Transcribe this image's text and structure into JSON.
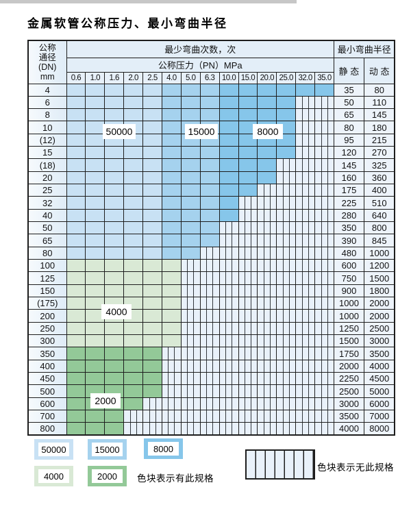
{
  "page": {
    "title": "金属软管公称压力、最小弯曲半径"
  },
  "table": {
    "corner": {
      "line1": "公称",
      "line2": "通径",
      "line3": "(DN)",
      "line4": "mm"
    },
    "header_cycles": "最少弯曲次数，次",
    "header_radius": "最小弯曲半径",
    "header_pressure": "公称压力（PN）MPa",
    "static_label": "静 态",
    "dynamic_label": "动 态",
    "pressure_cols": [
      "0.6",
      "1.0",
      "1.6",
      "2.0",
      "2.5",
      "4.0",
      "5.0",
      "6.3",
      "10.0",
      "15.0",
      "20.0",
      "25.0",
      "32.0",
      "35.0"
    ],
    "shade_by_pressure_index": {
      "blue_50000": [
        0,
        4
      ],
      "blue_15000": [
        5,
        7
      ],
      "blue_8000": [
        8,
        13
      ]
    },
    "rows": [
      {
        "dn": "4",
        "static": "35",
        "dynamic": "80",
        "palette": "blue",
        "solid": 14
      },
      {
        "dn": "6",
        "static": "50",
        "dynamic": "110",
        "palette": "blue",
        "solid": 12
      },
      {
        "dn": "8",
        "static": "65",
        "dynamic": "145",
        "palette": "blue",
        "solid": 12
      },
      {
        "dn": "10",
        "static": "80",
        "dynamic": "180",
        "palette": "blue",
        "solid": 12
      },
      {
        "dn": "(12)",
        "static": "95",
        "dynamic": "215",
        "palette": "blue",
        "solid": 12
      },
      {
        "dn": "15",
        "static": "120",
        "dynamic": "270",
        "palette": "blue",
        "solid": 12
      },
      {
        "dn": "(18)",
        "static": "145",
        "dynamic": "325",
        "palette": "blue",
        "solid": 11
      },
      {
        "dn": "20",
        "static": "160",
        "dynamic": "360",
        "palette": "blue",
        "solid": 11
      },
      {
        "dn": "25",
        "static": "175",
        "dynamic": "400",
        "palette": "blue",
        "solid": 10
      },
      {
        "dn": "32",
        "static": "225",
        "dynamic": "510",
        "palette": "blue",
        "solid": 9
      },
      {
        "dn": "40",
        "static": "280",
        "dynamic": "640",
        "palette": "blue",
        "solid": 9
      },
      {
        "dn": "50",
        "static": "350",
        "dynamic": "800",
        "palette": "blue",
        "solid": 8
      },
      {
        "dn": "65",
        "static": "390",
        "dynamic": "845",
        "palette": "blue",
        "solid": 8
      },
      {
        "dn": "80",
        "static": "480",
        "dynamic": "1000",
        "palette": "blue",
        "solid": 7
      },
      {
        "dn": "100",
        "static": "600",
        "dynamic": "1200",
        "palette": "green4000",
        "solid": 6
      },
      {
        "dn": "125",
        "static": "750",
        "dynamic": "1500",
        "palette": "green4000",
        "solid": 6
      },
      {
        "dn": "150",
        "static": "900",
        "dynamic": "1800",
        "palette": "green4000",
        "solid": 6
      },
      {
        "dn": "(175)",
        "static": "1000",
        "dynamic": "2000",
        "palette": "green4000",
        "solid": 6
      },
      {
        "dn": "200",
        "static": "1000",
        "dynamic": "2000",
        "palette": "green4000",
        "solid": 6
      },
      {
        "dn": "250",
        "static": "1250",
        "dynamic": "2500",
        "palette": "green4000",
        "solid": 6
      },
      {
        "dn": "300",
        "static": "1500",
        "dynamic": "3000",
        "palette": "green4000",
        "solid": 6
      },
      {
        "dn": "350",
        "static": "1750",
        "dynamic": "3500",
        "palette": "green2000",
        "solid": 5
      },
      {
        "dn": "400",
        "static": "2000",
        "dynamic": "4000",
        "palette": "green2000",
        "solid": 5
      },
      {
        "dn": "450",
        "static": "2250",
        "dynamic": "4500",
        "palette": "green2000",
        "solid": 5
      },
      {
        "dn": "500",
        "static": "2500",
        "dynamic": "5000",
        "palette": "green2000",
        "solid": 5
      },
      {
        "dn": "600",
        "static": "3000",
        "dynamic": "6000",
        "palette": "green2000",
        "solid": 4
      },
      {
        "dn": "700",
        "static": "3500",
        "dynamic": "7000",
        "palette": "green2000",
        "solid": 3
      },
      {
        "dn": "800",
        "static": "4000",
        "dynamic": "8000",
        "palette": "green2000",
        "solid": 3
      }
    ]
  },
  "overlays": {
    "l50000": "50000",
    "l15000": "15000",
    "l8000": "8000",
    "l4000": "4000",
    "l2000": "2000"
  },
  "legend": {
    "items": [
      {
        "label": "50000",
        "color": "#c8e1f4"
      },
      {
        "label": "15000",
        "color": "#a5d2ee"
      },
      {
        "label": "8000",
        "color": "#86c6ea"
      },
      {
        "label": "4000",
        "color": "#d9e9d5"
      },
      {
        "label": "2000",
        "color": "#93c998"
      }
    ],
    "has_spec_text": "色块表示有此规格",
    "no_spec_text": "色块表示无此规格"
  },
  "colors": {
    "cycles_50000": "#c8e1f4",
    "cycles_15000": "#a5d2ee",
    "cycles_8000": "#86c6ea",
    "cycles_4000": "#d9e9d5",
    "cycles_2000": "#93c998",
    "no_spec_bg": "#e9f1fa",
    "grid_line": "#1d1d1d"
  }
}
